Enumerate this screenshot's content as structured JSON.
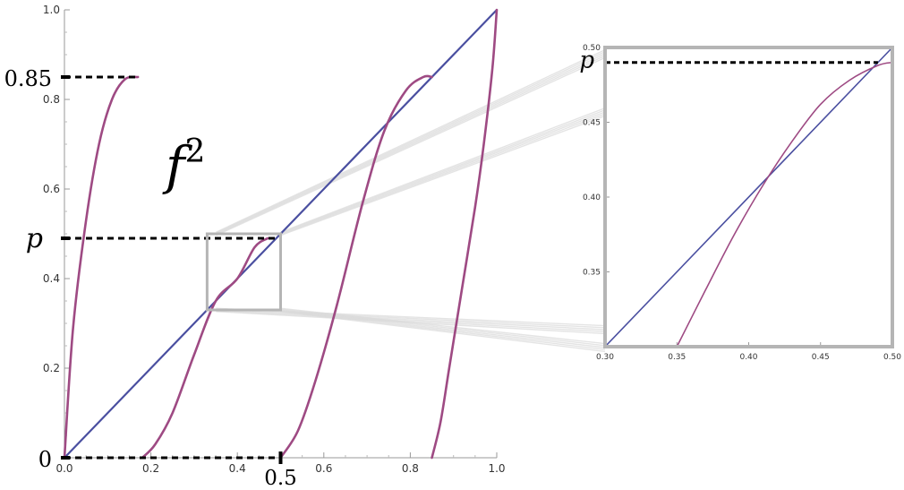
{
  "chart_data": [
    {
      "type": "line",
      "title": "",
      "xlabel": "",
      "ylabel": "",
      "xlim": [
        0.0,
        1.0
      ],
      "ylim": [
        0.0,
        1.0
      ],
      "xticks": [
        "0.0",
        "0.2",
        "0.4",
        "0.6",
        "0.8",
        "1.0"
      ],
      "yticks": [
        "0.2",
        "0.4",
        "0.6",
        "0.8",
        "1.0"
      ],
      "grid": false,
      "series": [
        {
          "role": "diagonal",
          "color": "#4a4fa0",
          "x": [
            0.0,
            1.0
          ],
          "y": [
            0.0,
            1.0
          ]
        },
        {
          "role": "branch",
          "color": "#9e4a83",
          "x": [
            0.0,
            0.02,
            0.05,
            0.08,
            0.11,
            0.14,
            0.17
          ],
          "y": [
            0.0,
            0.29,
            0.53,
            0.7,
            0.8,
            0.845,
            0.85
          ]
        },
        {
          "role": "branch",
          "color": "#9e4a83",
          "x": [
            0.18,
            0.21,
            0.25,
            0.3,
            0.35,
            0.4,
            0.44,
            0.47
          ],
          "y": [
            0.0,
            0.03,
            0.1,
            0.23,
            0.35,
            0.4,
            0.47,
            0.49
          ]
        },
        {
          "role": "branch",
          "color": "#9e4a83",
          "x": [
            0.5,
            0.54,
            0.58,
            0.63,
            0.69,
            0.74,
            0.79,
            0.83,
            0.85
          ],
          "y": [
            0.0,
            0.06,
            0.17,
            0.34,
            0.57,
            0.73,
            0.82,
            0.85,
            0.85
          ]
        },
        {
          "role": "branch",
          "color": "#9e4a83",
          "x": [
            0.85,
            0.87,
            0.89,
            0.92,
            0.95,
            0.97,
            0.99,
            1.0
          ],
          "y": [
            0.0,
            0.08,
            0.2,
            0.38,
            0.56,
            0.7,
            0.87,
            1.0
          ]
        }
      ],
      "reference_lines": [
        {
          "label": "0.85",
          "y": 0.85,
          "x_end": 0.17
        },
        {
          "label": "p",
          "y": 0.49,
          "x_end": 0.5
        },
        {
          "label": "0",
          "y": 0.0,
          "x_end": 0.5
        }
      ],
      "x_marker": {
        "label": "0.5",
        "x": 0.5
      },
      "annotation": {
        "base": "f",
        "exponent": "2"
      },
      "zoom_box": {
        "xlim": [
          0.33,
          0.5
        ],
        "ylim": [
          0.33,
          0.5
        ]
      }
    },
    {
      "type": "line",
      "title": "",
      "xlabel": "",
      "ylabel": "",
      "xlim": [
        0.3,
        0.5
      ],
      "ylim": [
        0.3,
        0.5
      ],
      "xticks": [
        "0.30",
        "0.35",
        "0.40",
        "0.45",
        "0.50"
      ],
      "yticks": [
        "0.35",
        "0.40",
        "0.45",
        "0.50"
      ],
      "grid": false,
      "series": [
        {
          "role": "diagonal",
          "color": "#4a4fa0",
          "x": [
            0.3,
            0.5
          ],
          "y": [
            0.3,
            0.5
          ]
        },
        {
          "role": "branch",
          "color": "#9e4a83",
          "x": [
            0.35,
            0.37,
            0.39,
            0.41,
            0.43,
            0.45,
            0.47,
            0.49,
            0.5
          ],
          "y": [
            0.3,
            0.338,
            0.375,
            0.408,
            0.437,
            0.462,
            0.478,
            0.488,
            0.49
          ]
        }
      ],
      "reference_lines": [
        {
          "label": "p",
          "y": 0.49,
          "x_end": 0.49
        }
      ]
    }
  ]
}
